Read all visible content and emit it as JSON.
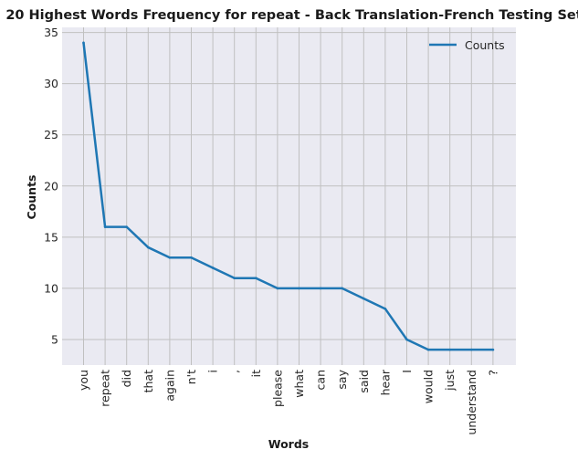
{
  "chart_data": {
    "type": "line",
    "title": "20 Highest Words Frequency for repeat - Back Translation-French Testing Set",
    "xlabel": "Words",
    "ylabel": "Counts",
    "categories": [
      "you",
      "repeat",
      "did",
      "that",
      "again",
      "n't",
      "i",
      ",",
      "it",
      "please",
      "what",
      "can",
      "say",
      "said",
      "hear",
      "I",
      "would",
      "just",
      "understand",
      "?"
    ],
    "series": [
      {
        "name": "Counts",
        "values": [
          34,
          16,
          16,
          14,
          13,
          13,
          12,
          11,
          11,
          10,
          10,
          10,
          10,
          9,
          8,
          5,
          4,
          4,
          4,
          4
        ]
      }
    ],
    "yticks": [
      5,
      10,
      15,
      20,
      25,
      30,
      35
    ],
    "ylim": [
      2.5,
      35.5
    ],
    "grid": true,
    "legend_position": "top-right",
    "colors": {
      "line": "#1f77b4",
      "plot_bg": "#eaeaf2",
      "grid": "#c0c0c0"
    }
  }
}
